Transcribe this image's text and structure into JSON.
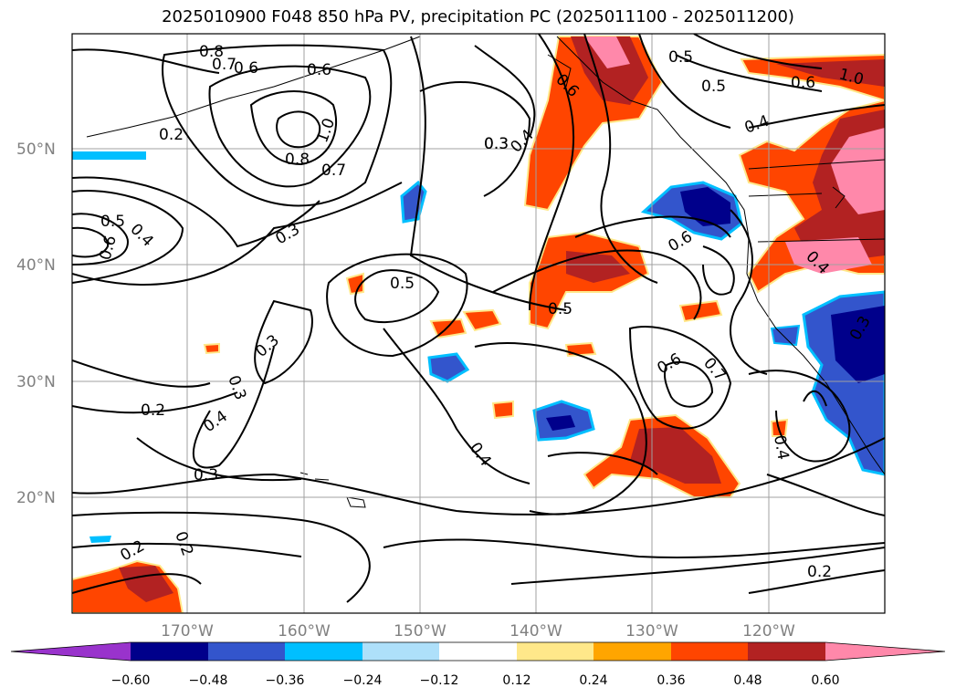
{
  "title": "2025010900 F048 850 hPa PV, precipitation PC (2025011100 - 2025011200)",
  "map": {
    "projection": "PlateCarree",
    "lon_range": [
      -180,
      -110
    ],
    "lat_range": [
      10,
      60
    ],
    "lat_labels": [
      "50°N",
      "40°N",
      "30°N",
      "20°N"
    ],
    "lon_labels": [
      "170°W",
      "160°W",
      "150°W",
      "140°W",
      "130°W",
      "120°W"
    ],
    "gridlines": true,
    "contour_color": "#000000",
    "contour_labels": [
      "0.8",
      "0.7",
      "0.6",
      "0.6",
      "0.2",
      "1.0",
      "0.8",
      "0.7",
      "0.5",
      "0.4",
      "0.6",
      "0.3",
      "0.5",
      "0.3",
      "0.3",
      "0.3",
      "0.2",
      "0.4",
      "0.3",
      "0.2",
      "0.2",
      "0.3",
      "0.4",
      "0.5",
      "0.6",
      "0.6",
      "0.7",
      "0.4",
      "0.6",
      "0.5",
      "0.5",
      "0.4",
      "0.4",
      "0.6",
      "1.0",
      "0.3",
      "0.4",
      "0.2"
    ]
  },
  "colorbar": {
    "ticks": [
      "−0.60",
      "−0.48",
      "−0.36",
      "−0.24",
      "−0.12",
      "0.12",
      "0.24",
      "0.36",
      "0.48",
      "0.60"
    ],
    "colors": [
      "#9933cc",
      "#00008b",
      "#3355cc",
      "#00bfff",
      "#aee0fa",
      "#ffffff",
      "#ffe88a",
      "#ffa500",
      "#ff4500",
      "#b22222",
      "#ff88aa"
    ],
    "extend": "both"
  }
}
